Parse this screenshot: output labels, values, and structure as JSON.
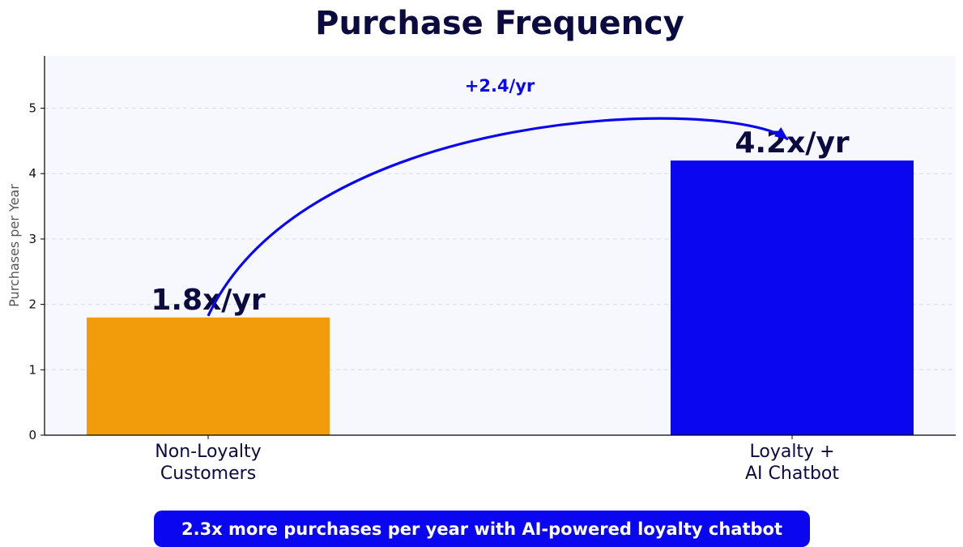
{
  "chart_data": {
    "type": "bar",
    "title": "Purchase Frequency",
    "xlabel": "",
    "ylabel": "Purchases per Year",
    "ylim": [
      0,
      5.8
    ],
    "yticks": [
      0,
      1,
      2,
      3,
      4,
      5
    ],
    "categories": [
      [
        "Non-Loyalty",
        "Customers"
      ],
      [
        "Loyalty +",
        "AI Chatbot"
      ]
    ],
    "values": [
      1.8,
      4.2
    ],
    "data_labels": [
      "1.8x/yr",
      "4.2x/yr"
    ],
    "bar_colors": [
      "#f39c0b",
      "#0a07f0"
    ],
    "grid": true,
    "annotation": {
      "text": "+2.4/yr",
      "color": "#0a07f0",
      "type": "curved-arrow",
      "from": 0,
      "to": 1
    }
  },
  "banner": {
    "text": "2.3x more purchases per year with AI-powered loyalty chatbot",
    "color": "#0a07f0"
  },
  "colors": {
    "plot_background": "#f7f8fd",
    "text_dark": "#0b0b40"
  }
}
